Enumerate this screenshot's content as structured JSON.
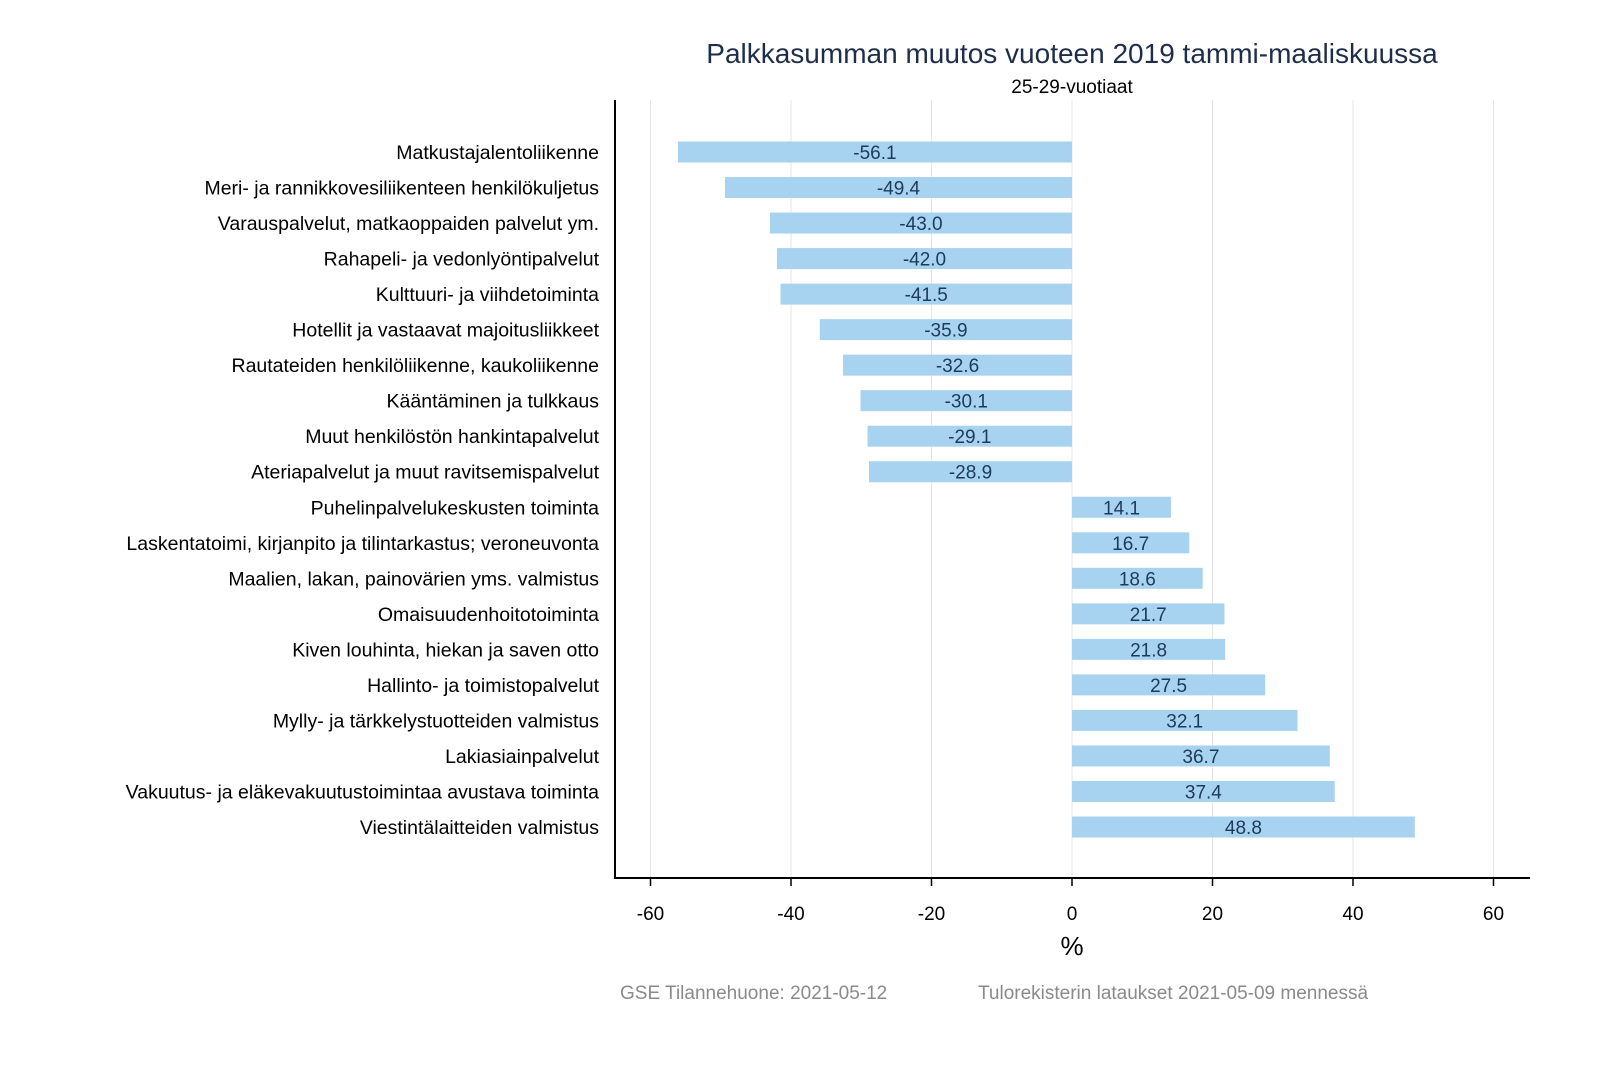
{
  "chart_data": {
    "type": "bar",
    "orientation": "horizontal",
    "title": "Palkkasumman muutos vuoteen 2019 tammi-maaliskuussa",
    "subtitle": "25-29-vuotiaat",
    "xlabel": "%",
    "ylabel": "",
    "xlim": [
      -65,
      65
    ],
    "xticks": [
      -60,
      -40,
      -20,
      0,
      20,
      40,
      60
    ],
    "grid": true,
    "bar_color": "#a8d3f0",
    "categories": [
      "Matkustajalentoliikenne",
      "Meri- ja rannikkovesiliikenteen henkilökuljetus",
      "Varauspalvelut, matkaoppaiden palvelut ym.",
      "Rahapeli- ja vedonlyöntipalvelut",
      "Kulttuuri- ja viihdetoiminta",
      "Hotellit ja vastaavat majoitusliikkeet",
      "Rautateiden henkilöliikenne, kaukoliikenne",
      "Kääntäminen ja tulkkaus",
      "Muut henkilöstön hankintapalvelut",
      "Ateriapalvelut ja muut ravitsemispalvelut",
      "Puhelinpalvelukeskusten toiminta",
      "Laskentatoimi, kirjanpito ja tilintarkastus; veroneuvonta",
      "Maalien, lakan, painovärien yms. valmistus",
      "Omaisuudenhoitotoiminta",
      "Kiven louhinta, hiekan ja saven otto",
      "Hallinto- ja toimistopalvelut",
      "Mylly- ja tärkkelystuotteiden valmistus",
      "Lakiasiainpalvelut",
      "Vakuutus- ja eläkevakuutustoimintaa avustava toiminta",
      "Viestintälaitteiden valmistus"
    ],
    "values": [
      -56.1,
      -49.4,
      -43.0,
      -42.0,
      -41.5,
      -35.9,
      -32.6,
      -30.1,
      -29.1,
      -28.9,
      14.1,
      16.7,
      18.6,
      21.7,
      21.8,
      27.5,
      32.1,
      36.7,
      37.4,
      48.8
    ]
  },
  "footer": {
    "left": "GSE Tilannehuone: 2021-05-12",
    "right": "Tulorekisterin lataukset 2021-05-09 mennessä"
  }
}
